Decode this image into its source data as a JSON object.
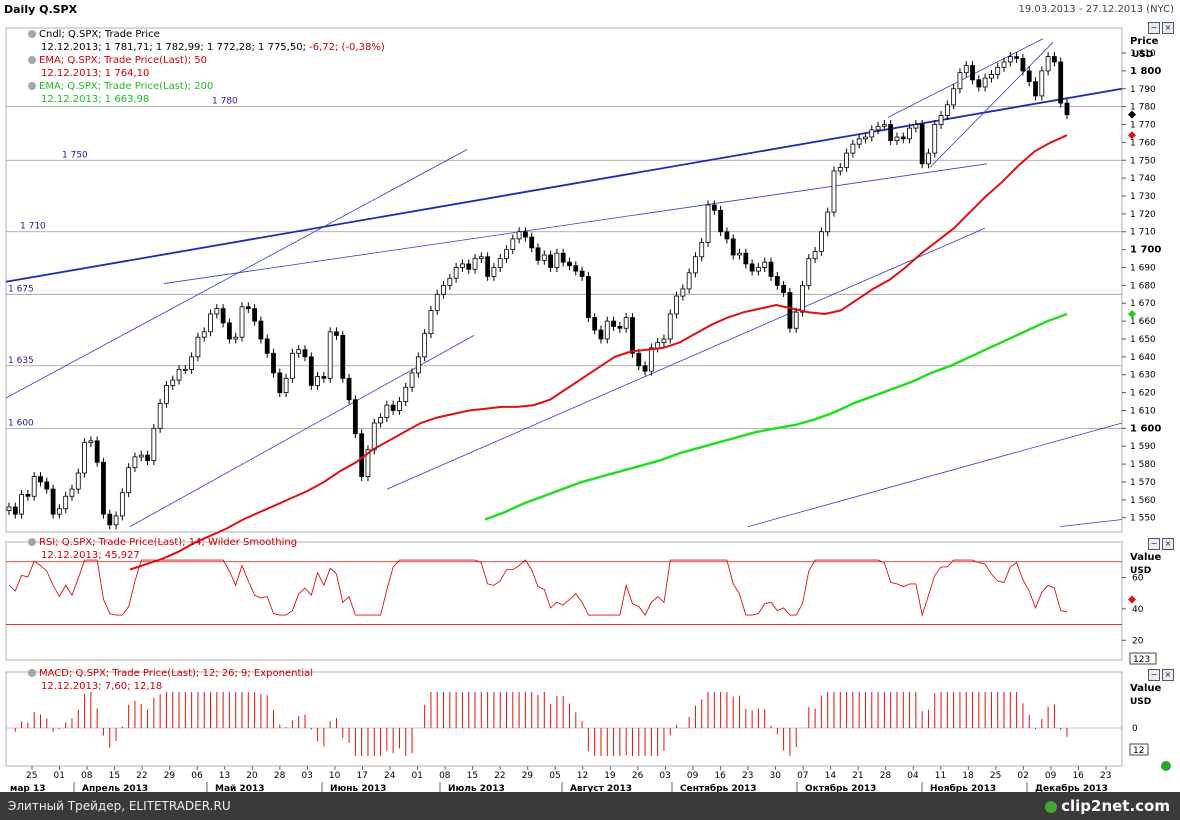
{
  "header": {
    "title": "Daily Q.SPX",
    "range": "19.03.2013 - 27.12.2013 (NYC)"
  },
  "footer": {
    "left": "Элитный Трейдер, ELITETRADER.RU",
    "brand": "clip2net.com"
  },
  "legends": {
    "price": [
      {
        "label": "Cndl; Q.SPX; Trade Price",
        "color": "#000000",
        "icon": true
      },
      {
        "label": "12.12.2013; 1 781,71; 1 782,99; 1 772,28; 1 775,50; ",
        "extra": "-6,72; (-0,38%)",
        "color": "#000000",
        "extra_color": "#cc0000"
      },
      {
        "label": "EMA; Q.SPX; Trade Price(Last); 50",
        "color": "#cc0000",
        "icon": true
      },
      {
        "label": "12.12.2013; 1 764,10",
        "color": "#cc0000"
      },
      {
        "label": "EMA; Q.SPX; Trade Price(Last); 200",
        "color": "#22bb22",
        "icon": true
      },
      {
        "label": "12.12.2013; 1 663,98",
        "color": "#22bb22"
      }
    ],
    "rsi": [
      {
        "label": "RSI; Q.SPX; Trade Price(Last); 14; Wilder Smoothing",
        "color": "#cc0000",
        "icon": true
      },
      {
        "label": "12.12.2013; 45,927",
        "color": "#cc0000"
      }
    ],
    "macd": [
      {
        "label": "MACD; Q.SPX; Trade Price(Last); 12; 26; 9; Exponential",
        "color": "#cc0000",
        "icon": true
      },
      {
        "label": "12.12.2013; 7,60; 12,18",
        "color": "#cc0000"
      }
    ]
  },
  "axis": {
    "price_header": "Price",
    "price_unit": "USD",
    "value_header": "Value",
    "value_unit": "USD",
    "rsi_box": "123",
    "macd_box": "12"
  },
  "chart_data": {
    "type": "candlestick",
    "title": "Daily Q.SPX",
    "x_range": [
      "19.03.2013",
      "27.12.2013"
    ],
    "price_axis": {
      "ylim": [
        1542,
        1824
      ],
      "ticks": [
        1550,
        1560,
        1570,
        1580,
        1590,
        1600,
        1610,
        1620,
        1630,
        1640,
        1650,
        1660,
        1670,
        1680,
        1690,
        1700,
        1710,
        1720,
        1730,
        1740,
        1750,
        1760,
        1770,
        1780,
        1790,
        1800,
        1810
      ],
      "tick_labels": [
        "1 550",
        "1 560",
        "1 570",
        "1 580",
        "1 590",
        "1 600",
        "1 610",
        "1 620",
        "1 630",
        "1 640",
        "1 650",
        "1 660",
        "1 670",
        "1 680",
        "1 690",
        "1 700",
        "1 710",
        "1 720",
        "1 730",
        "1 740",
        "1 750",
        "1 760",
        "1 770",
        "1 780",
        "1 790",
        "1 800",
        "1 810"
      ],
      "bold_ticks": [
        1600,
        1700,
        1800
      ]
    },
    "horizontal_levels": [
      {
        "value": 1780,
        "label": "1 780"
      },
      {
        "value": 1750,
        "label": "1 750"
      },
      {
        "value": 1710,
        "label": "1 710"
      },
      {
        "value": 1675,
        "label": "1 675"
      },
      {
        "value": 1635,
        "label": "1 635"
      },
      {
        "value": 1600,
        "label": "1 600"
      }
    ],
    "date_ticks": [
      "25",
      "01",
      "08",
      "15",
      "22",
      "29",
      "06",
      "13",
      "20",
      "28",
      "03",
      "10",
      "17",
      "24",
      "01",
      "08",
      "15",
      "22",
      "29",
      "05",
      "12",
      "19",
      "26",
      "03",
      "09",
      "16",
      "23",
      "30",
      "07",
      "14",
      "21",
      "28",
      "04",
      "11",
      "18",
      "25",
      "02",
      "09",
      "16",
      "23"
    ],
    "months": [
      "мар 13",
      "Апрель 2013",
      "Май 2013",
      "Июнь 2013",
      "Июль 2013",
      "Август 2013",
      "Сентябрь 2013",
      "Октябрь 2013",
      "Ноябрь 2013",
      "Декабрь 2013"
    ],
    "candles_close": [
      1556,
      1552,
      1563,
      1562,
      1573,
      1570,
      1566,
      1552,
      1555,
      1562,
      1566,
      1575,
      1592,
      1593,
      1581,
      1552,
      1546,
      1551,
      1564,
      1578,
      1584,
      1585,
      1582,
      1600,
      1614,
      1624,
      1627,
      1633,
      1633,
      1640,
      1651,
      1654,
      1664,
      1667,
      1659,
      1650,
      1651,
      1668,
      1667,
      1660,
      1650,
      1642,
      1631,
      1620,
      1628,
      1642,
      1644,
      1640,
      1624,
      1629,
      1628,
      1654,
      1652,
      1628,
      1616,
      1597,
      1573,
      1588,
      1603,
      1606,
      1613,
      1610,
      1615,
      1623,
      1631,
      1640,
      1653,
      1666,
      1675,
      1680,
      1684,
      1690,
      1692,
      1689,
      1695,
      1696,
      1685,
      1690,
      1695,
      1700,
      1706,
      1710,
      1707,
      1701,
      1694,
      1697,
      1690,
      1698,
      1693,
      1691,
      1688,
      1685,
      1662,
      1655,
      1650,
      1660,
      1657,
      1656,
      1662,
      1642,
      1635,
      1632,
      1645,
      1648,
      1650,
      1664,
      1674,
      1678,
      1687,
      1696,
      1704,
      1725,
      1722,
      1710,
      1706,
      1697,
      1698,
      1692,
      1688,
      1690,
      1693,
      1685,
      1680,
      1676,
      1656,
      1665,
      1680,
      1695,
      1699,
      1710,
      1721,
      1744,
      1746,
      1754,
      1759,
      1762,
      1763,
      1767,
      1769,
      1770,
      1761,
      1763,
      1762,
      1768,
      1770,
      1748,
      1754,
      1770,
      1775,
      1781,
      1790,
      1799,
      1803,
      1795,
      1791,
      1796,
      1798,
      1802,
      1805,
      1808,
      1807,
      1800,
      1794,
      1786,
      1800,
      1808,
      1805,
      1782,
      1775.5
    ],
    "ema50": [
      1521,
      1524,
      1527,
      1531,
      1536,
      1540,
      1544,
      1549,
      1553,
      1557,
      1561,
      1565,
      1570,
      1576,
      1581,
      1588,
      1593,
      1598,
      1603,
      1606,
      1608,
      1610,
      1611,
      1612,
      1612,
      1613,
      1616,
      1622,
      1628,
      1634,
      1640,
      1643,
      1644,
      1645,
      1648,
      1653,
      1658,
      1662,
      1665,
      1667,
      1669,
      1667,
      1665,
      1664,
      1666,
      1672,
      1678,
      1683,
      1690,
      1698,
      1705,
      1712,
      1721,
      1730,
      1738,
      1747,
      1755,
      1760,
      1764
    ],
    "ema200": [
      1549,
      1553,
      1558,
      1562,
      1566,
      1570,
      1573,
      1576,
      1579,
      1582,
      1586,
      1589,
      1592,
      1595,
      1598,
      1600,
      1602,
      1605,
      1609,
      1614,
      1618,
      1622,
      1626,
      1631,
      1635,
      1640,
      1645,
      1650,
      1655,
      1660,
      1664
    ],
    "rsi": {
      "levels": [
        70,
        30
      ],
      "ticks": [
        60,
        40,
        20
      ],
      "last": 45.927
    },
    "macd": {
      "last": 7.6,
      "signal": 12.18,
      "zero_label": "0"
    }
  }
}
